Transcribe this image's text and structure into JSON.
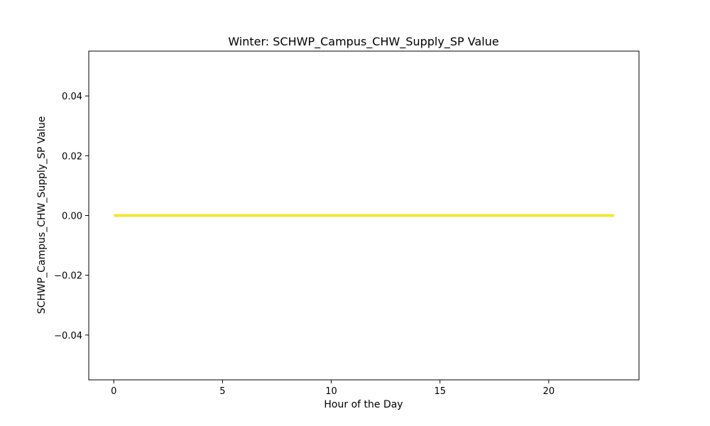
{
  "chart_data": {
    "type": "line",
    "title": "Winter: SCHWP_Campus_CHW_Supply_SP Value",
    "xlabel": "Hour of the Day",
    "ylabel": "SCHWP_Campus_CHW_Supply_SP Value",
    "xlim": [
      -1.15,
      24.15
    ],
    "ylim": [
      -0.055,
      0.055
    ],
    "x_ticks": [
      0,
      5,
      10,
      15,
      20
    ],
    "y_ticks": [
      -0.04,
      -0.02,
      0.0,
      0.02,
      0.04
    ],
    "x_tick_labels": [
      "0",
      "5",
      "10",
      "15",
      "20"
    ],
    "y_tick_labels": [
      "−0.04",
      "−0.02",
      "0.00",
      "0.02",
      "0.04"
    ],
    "grid": false,
    "series": [
      {
        "color": "#f5e535",
        "x": [
          0,
          1,
          2,
          3,
          4,
          5,
          6,
          7,
          8,
          9,
          10,
          11,
          12,
          13,
          14,
          15,
          16,
          17,
          18,
          19,
          20,
          21,
          22,
          23
        ],
        "y": [
          0,
          0,
          0,
          0,
          0,
          0,
          0,
          0,
          0,
          0,
          0,
          0,
          0,
          0,
          0,
          0,
          0,
          0,
          0,
          0,
          0,
          0,
          0,
          0
        ]
      }
    ]
  }
}
